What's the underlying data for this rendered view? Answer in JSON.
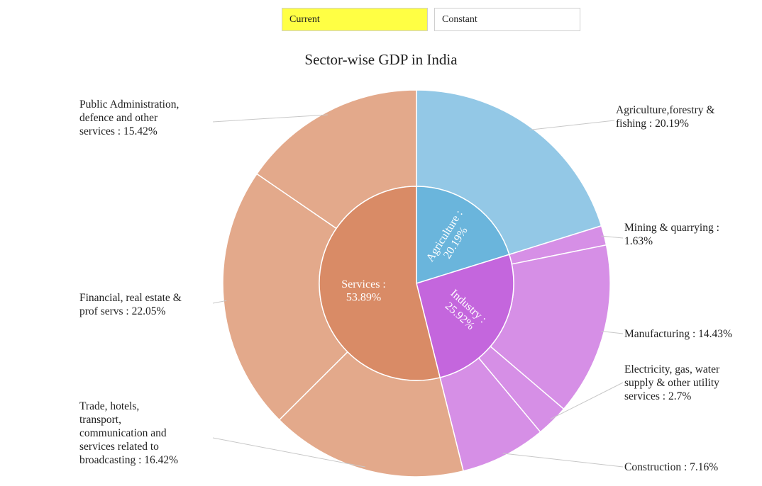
{
  "toggles": {
    "current": "Current",
    "constant": "Constant",
    "active": "current",
    "active_color": "#ffff44"
  },
  "chart_data": {
    "type": "pie",
    "variant": "sunburst",
    "title": "Sector-wise GDP in India",
    "legend": "none",
    "inner": [
      {
        "label": "Agriculture : 20.19%",
        "value": 20.19,
        "color": "#6ab5dc"
      },
      {
        "label": "Industry : 25.92%",
        "value": 25.92,
        "color": "#c466dd"
      },
      {
        "label": "Services : 53.89%",
        "value": 53.89,
        "color": "#d98b66"
      }
    ],
    "outer": [
      {
        "label": "Agriculture,forestry & fishing : 20.19%",
        "value": 20.19,
        "color": "#93c8e6"
      },
      {
        "label": "Mining & quarrying : 1.63%",
        "value": 1.63,
        "color": "#d68fe6"
      },
      {
        "label": "Manufacturing : 14.43%",
        "value": 14.43,
        "color": "#d68fe6"
      },
      {
        "label": "Electricity, gas, water supply & other utility services : 2.7%",
        "value": 2.7,
        "color": "#d68fe6"
      },
      {
        "label": "Construction : 7.16%",
        "value": 7.16,
        "color": "#d68fe6"
      },
      {
        "label": "Trade, hotels, transport, communication and services related to broadcasting : 16.42%",
        "value": 16.42,
        "color": "#e3a98b"
      },
      {
        "label": "Financial, real estate & prof servs : 22.05%",
        "value": 22.05,
        "color": "#e3a98b"
      },
      {
        "label": "Public Administration, defence and other services : 15.42%",
        "value": 15.42,
        "color": "#e3a98b"
      }
    ]
  }
}
